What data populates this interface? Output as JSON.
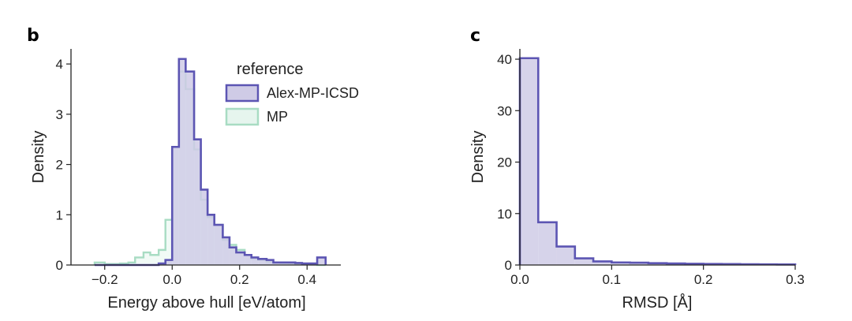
{
  "panels": [
    {
      "letter": "b"
    },
    {
      "letter": "c"
    }
  ],
  "colors": {
    "alex_stroke": "#5c55b3",
    "alex_fill": "#cfcbe6",
    "mp_stroke": "#a8dcc3",
    "mp_fill": "#e6f5ee"
  },
  "chart_data": [
    {
      "type": "histogram",
      "panel": "b",
      "xlabel": "Energy above hull [eV/atom]",
      "ylabel": "Density",
      "xlim": [
        -0.3,
        0.5
      ],
      "ylim": [
        0,
        4.3
      ],
      "xticks": [
        -0.2,
        0.0,
        0.2,
        0.4
      ],
      "xtick_labels": [
        "−0.2",
        "0.0",
        "0.2",
        "0.4"
      ],
      "yticks": [
        0,
        1,
        2,
        3,
        4
      ],
      "ytick_labels": [
        "0",
        "1",
        "2",
        "3",
        "4"
      ],
      "legend": {
        "title": "reference",
        "position": "top-right",
        "entries": [
          "Alex-MP-ICSD",
          "MP"
        ]
      },
      "bin_edges": [
        -0.23,
        -0.2,
        -0.18,
        -0.155,
        -0.13,
        -0.11,
        -0.085,
        -0.065,
        -0.04,
        -0.02,
        0.0,
        0.02,
        0.04,
        0.065,
        0.085,
        0.105,
        0.125,
        0.15,
        0.17,
        0.19,
        0.215,
        0.235,
        0.255,
        0.28,
        0.3,
        0.32,
        0.345,
        0.365,
        0.385,
        0.41,
        0.43,
        0.455
      ],
      "series": [
        {
          "name": "Alex-MP-ICSD",
          "values": [
            0.0,
            0.0,
            0.0,
            0.0,
            0.0,
            0.0,
            0.0,
            0.0,
            0.03,
            0.1,
            2.35,
            4.1,
            3.85,
            2.5,
            1.5,
            1.0,
            0.8,
            0.55,
            0.35,
            0.25,
            0.2,
            0.15,
            0.12,
            0.1,
            0.05,
            0.05,
            0.05,
            0.04,
            0.03,
            0.03,
            0.15
          ]
        },
        {
          "name": "MP",
          "values": [
            0.05,
            0.02,
            0.02,
            0.03,
            0.05,
            0.15,
            0.25,
            0.2,
            0.3,
            0.9,
            2.35,
            3.85,
            3.5,
            2.3,
            1.3,
            0.95,
            0.8,
            0.5,
            0.4,
            0.3,
            0.2,
            0.12,
            0.1,
            0.06,
            0.05,
            0.04,
            0.03,
            0.02,
            0.02,
            0.01,
            0.0
          ]
        }
      ]
    },
    {
      "type": "histogram",
      "panel": "c",
      "xlabel": "RMSD [Å]",
      "ylabel": "Density",
      "xlim": [
        0,
        0.3
      ],
      "ylim": [
        0,
        42
      ],
      "xticks": [
        0.0,
        0.1,
        0.2,
        0.3
      ],
      "xtick_labels": [
        "0.0",
        "0.1",
        "0.2",
        "0.3"
      ],
      "yticks": [
        0,
        10,
        20,
        30,
        40
      ],
      "ytick_labels": [
        "0",
        "10",
        "20",
        "30",
        "40"
      ],
      "bin_edges": [
        0.0,
        0.02,
        0.04,
        0.06,
        0.08,
        0.1,
        0.12,
        0.14,
        0.16,
        0.18,
        0.2,
        0.22,
        0.24,
        0.26,
        0.28,
        0.3
      ],
      "series": [
        {
          "name": "RMSD",
          "values": [
            40.2,
            8.3,
            3.6,
            1.3,
            0.7,
            0.5,
            0.45,
            0.35,
            0.3,
            0.25,
            0.2,
            0.18,
            0.15,
            0.12,
            0.1
          ]
        }
      ]
    }
  ]
}
